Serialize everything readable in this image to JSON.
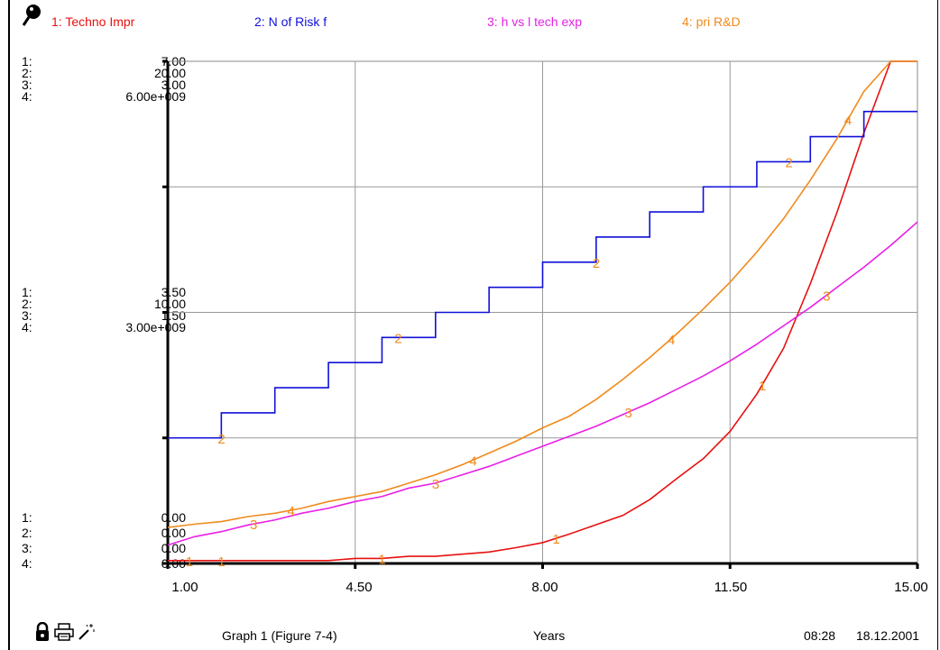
{
  "legend": [
    {
      "label": "1: Techno Impr",
      "color": "#e81010"
    },
    {
      "label": "2: N of Risk f",
      "color": "#1010d8"
    },
    {
      "label": "3: h vs l tech exp",
      "color": "#e820e8"
    },
    {
      "label": "4: pri R&D",
      "color": "#f08a1c"
    }
  ],
  "scales": {
    "top": {
      "idx": [
        "1:",
        "2:",
        "3:",
        "4:"
      ],
      "vals": [
        "7.00",
        "20.00",
        "3.00",
        "6.00e+009"
      ]
    },
    "mid": {
      "idx": [
        "1:",
        "2:",
        "3:",
        "4:"
      ],
      "vals": [
        "3.50",
        "10.00",
        "1.50",
        "3.00e+009"
      ]
    },
    "bot": {
      "idx": [
        "1:",
        "2:",
        "3:",
        "4:"
      ],
      "vals": [
        "0.00",
        "0.00",
        "0.00",
        "0.00"
      ]
    }
  },
  "footer": {
    "graph_title": "Graph 1 (Figure 7-4)",
    "x_unit": "Years",
    "time": "08:28",
    "date": "18.12.2001",
    "icons": [
      "lock-icon",
      "printer-icon",
      "magic-wand-icon"
    ]
  },
  "chart_data": {
    "type": "line",
    "xlabel": "Years",
    "xlim": [
      1,
      15
    ],
    "x_ticks": [
      "1.00",
      "4.50",
      "8.00",
      "11.50",
      "15.00"
    ],
    "series": [
      {
        "name": "1: Techno Impr",
        "color": "#e81010",
        "ylim": [
          0,
          7
        ],
        "points": [
          [
            1,
            0.04
          ],
          [
            1.5,
            0.04
          ],
          [
            2,
            0.04
          ],
          [
            2.5,
            0.04
          ],
          [
            3,
            0.04
          ],
          [
            3.5,
            0.04
          ],
          [
            4,
            0.04
          ],
          [
            4.5,
            0.07
          ],
          [
            5,
            0.07
          ],
          [
            5.5,
            0.1
          ],
          [
            6,
            0.1
          ],
          [
            6.5,
            0.13
          ],
          [
            7,
            0.16
          ],
          [
            7.5,
            0.22
          ],
          [
            8,
            0.29
          ],
          [
            8.5,
            0.41
          ],
          [
            9,
            0.54
          ],
          [
            9.5,
            0.67
          ],
          [
            10,
            0.89
          ],
          [
            10.5,
            1.18
          ],
          [
            11,
            1.46
          ],
          [
            11.5,
            1.84
          ],
          [
            12,
            2.36
          ],
          [
            12.5,
            3.0
          ],
          [
            13,
            3.9
          ],
          [
            13.5,
            4.9
          ],
          [
            14,
            6.0
          ],
          [
            14.5,
            7.0
          ],
          [
            15,
            7.0
          ]
        ]
      },
      {
        "name": "2: N of Risk f",
        "color": "#1010d8",
        "ylim": [
          0,
          20
        ],
        "step": true,
        "points": [
          [
            1,
            5
          ],
          [
            1.5,
            5
          ],
          [
            2,
            6
          ],
          [
            2.5,
            6
          ],
          [
            3,
            7
          ],
          [
            3.5,
            7
          ],
          [
            4,
            8
          ],
          [
            4.5,
            8
          ],
          [
            5,
            9
          ],
          [
            5.5,
            9
          ],
          [
            6,
            10
          ],
          [
            6.5,
            10
          ],
          [
            7,
            11
          ],
          [
            7.5,
            11
          ],
          [
            8,
            12
          ],
          [
            8.5,
            12
          ],
          [
            9,
            13
          ],
          [
            9.5,
            13
          ],
          [
            10,
            14
          ],
          [
            10.5,
            14
          ],
          [
            11,
            15
          ],
          [
            11.5,
            15
          ],
          [
            12,
            16
          ],
          [
            12.5,
            16
          ],
          [
            13,
            17
          ],
          [
            13.5,
            17
          ],
          [
            14,
            18
          ],
          [
            14.5,
            18
          ],
          [
            15,
            18
          ]
        ]
      },
      {
        "name": "3: h vs l tech exp",
        "color": "#e820e8",
        "ylim": [
          0,
          3
        ],
        "points": [
          [
            1,
            0.11
          ],
          [
            1.5,
            0.16
          ],
          [
            2,
            0.19
          ],
          [
            2.5,
            0.23
          ],
          [
            3,
            0.26
          ],
          [
            3.5,
            0.3
          ],
          [
            4,
            0.33
          ],
          [
            4.5,
            0.37
          ],
          [
            5,
            0.4
          ],
          [
            5.5,
            0.45
          ],
          [
            6,
            0.48
          ],
          [
            6.5,
            0.53
          ],
          [
            7,
            0.58
          ],
          [
            7.5,
            0.64
          ],
          [
            8,
            0.7
          ],
          [
            8.5,
            0.76
          ],
          [
            9,
            0.82
          ],
          [
            9.5,
            0.89
          ],
          [
            10,
            0.96
          ],
          [
            10.5,
            1.04
          ],
          [
            11,
            1.12
          ],
          [
            11.5,
            1.21
          ],
          [
            12,
            1.31
          ],
          [
            12.5,
            1.42
          ],
          [
            13,
            1.53
          ],
          [
            13.5,
            1.65
          ],
          [
            14,
            1.77
          ],
          [
            14.5,
            1.9
          ],
          [
            15,
            2.04
          ]
        ]
      },
      {
        "name": "4: pri R&D",
        "color": "#f08a1c",
        "ylim": [
          0,
          6000000000
        ],
        "points": [
          [
            1,
            430000000.0
          ],
          [
            1.5,
            470000000.0
          ],
          [
            2,
            500000000.0
          ],
          [
            2.5,
            560000000.0
          ],
          [
            3,
            600000000.0
          ],
          [
            3.5,
            660000000.0
          ],
          [
            4,
            740000000.0
          ],
          [
            4.5,
            800000000.0
          ],
          [
            5,
            860000000.0
          ],
          [
            5.5,
            960000000.0
          ],
          [
            6,
            1060000000.0
          ],
          [
            6.5,
            1180000000.0
          ],
          [
            7,
            1320000000.0
          ],
          [
            7.5,
            1460000000.0
          ],
          [
            8,
            1620000000.0
          ],
          [
            8.5,
            1760000000.0
          ],
          [
            9,
            1960000000.0
          ],
          [
            9.5,
            2200000000.0
          ],
          [
            10,
            2460000000.0
          ],
          [
            10.5,
            2740000000.0
          ],
          [
            11,
            3040000000.0
          ],
          [
            11.5,
            3360000000.0
          ],
          [
            12,
            3720000000.0
          ],
          [
            12.5,
            4120000000.0
          ],
          [
            13,
            4580000000.0
          ],
          [
            13.5,
            5080000000.0
          ],
          [
            14,
            5640000000.0
          ],
          [
            14.5,
            6100000000.0
          ],
          [
            15,
            6000000000.0
          ]
        ]
      }
    ],
    "point_labels": [
      {
        "series": 0,
        "text": "1",
        "at": [
          1.4,
          2.0,
          5.0,
          8.25,
          12.1
        ]
      },
      {
        "series": 1,
        "text": "2",
        "at": [
          2.0,
          5.3,
          9.0,
          12.6
        ]
      },
      {
        "series": 2,
        "text": "3",
        "at": [
          2.6,
          6.0,
          9.6,
          13.3
        ]
      },
      {
        "series": 3,
        "text": "4",
        "at": [
          3.3,
          6.7,
          10.4,
          13.7
        ]
      }
    ],
    "label_colors": {
      "0": "#f08a1c",
      "1": "#f08a1c",
      "2": "#f08a1c",
      "3": "#f08a1c"
    }
  }
}
